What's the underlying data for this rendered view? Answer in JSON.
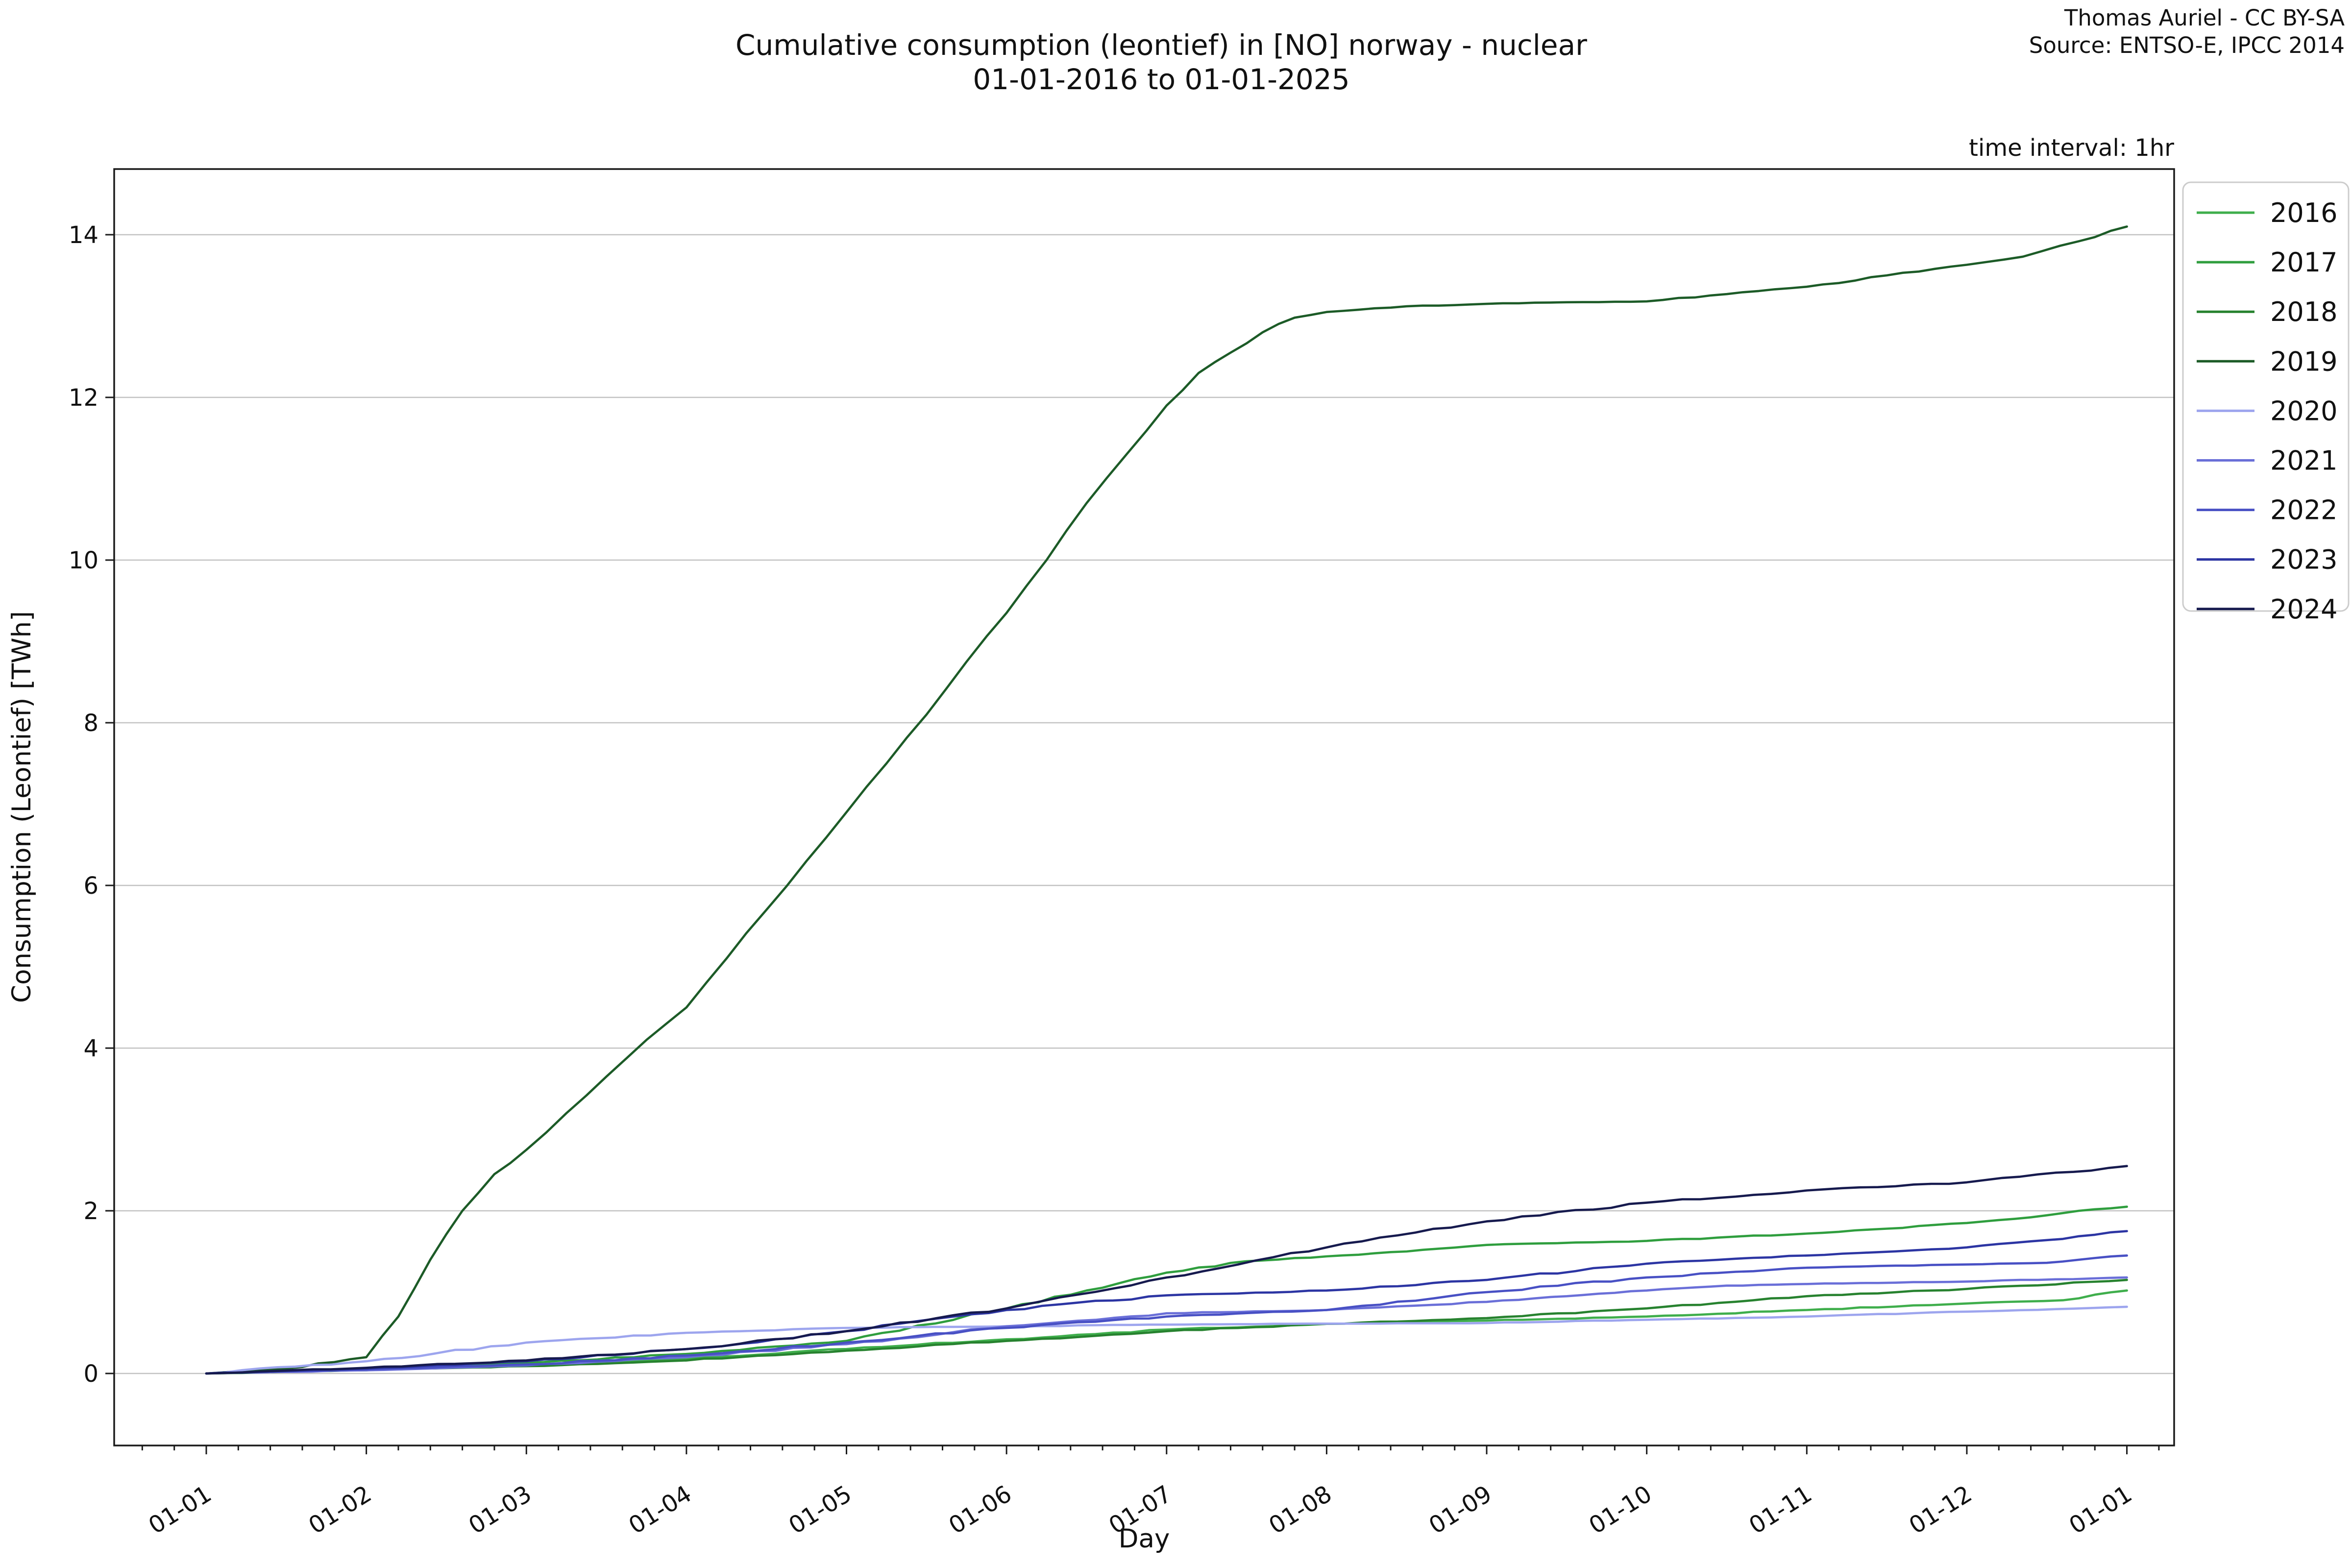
{
  "title": {
    "line1": "Cumulative consumption (leontief) in [NO] norway - nuclear",
    "line2": "01-01-2016 to 01-01-2025"
  },
  "attribution": {
    "line1": "Thomas Auriel - CC BY-SA",
    "line2": "Source: ENTSO-E, IPCC 2014"
  },
  "note": "time interval: 1hr",
  "chart_data": {
    "type": "line",
    "title": "Cumulative consumption (leontief) in [NO] norway - nuclear",
    "subtitle": "01-01-2016 to 01-01-2025",
    "xlabel": "Day",
    "ylabel": "Consumption (Leontief) [TWh]",
    "x_tick_labels": [
      "01-01",
      "01-02",
      "01-03",
      "01-04",
      "01-05",
      "01-06",
      "01-07",
      "01-08",
      "01-09",
      "01-10",
      "01-11",
      "01-12",
      "01-01"
    ],
    "y_ticks": [
      0,
      2,
      4,
      6,
      8,
      10,
      12,
      14
    ],
    "xlim_months": [
      -0.58,
      12.3
    ],
    "ylim": [
      -0.88,
      14.8
    ],
    "grid": "horizontal",
    "legend": {
      "position": "outside-right",
      "labels": [
        "2016",
        "2017",
        "2018",
        "2019",
        "2020",
        "2021",
        "2022",
        "2023",
        "2024"
      ]
    },
    "units": "TWh",
    "x_units": "months from 01-01",
    "series": [
      {
        "name": "2016",
        "color": "#3fae4c",
        "points": [
          [
            0,
            0
          ],
          [
            1,
            0.05
          ],
          [
            2,
            0.11
          ],
          [
            3,
            0.18
          ],
          [
            4,
            0.3
          ],
          [
            5,
            0.42
          ],
          [
            6,
            0.54
          ],
          [
            7,
            0.61
          ],
          [
            8,
            0.65
          ],
          [
            9,
            0.7
          ],
          [
            10,
            0.78
          ],
          [
            11,
            0.86
          ],
          [
            11.6,
            0.9
          ],
          [
            12,
            1.02
          ]
        ]
      },
      {
        "name": "2017",
        "color": "#2f9e3e",
        "points": [
          [
            0,
            0
          ],
          [
            1,
            0.06
          ],
          [
            2,
            0.13
          ],
          [
            3,
            0.24
          ],
          [
            4,
            0.4
          ],
          [
            5,
            0.8
          ],
          [
            5.5,
            1.02
          ],
          [
            6,
            1.24
          ],
          [
            6.5,
            1.38
          ],
          [
            7,
            1.44
          ],
          [
            7.5,
            1.5
          ],
          [
            8,
            1.58
          ],
          [
            9,
            1.63
          ],
          [
            10,
            1.72
          ],
          [
            10.5,
            1.78
          ],
          [
            11,
            1.85
          ],
          [
            11.4,
            1.92
          ],
          [
            11.7,
            2.0
          ],
          [
            12,
            2.05
          ]
        ]
      },
      {
        "name": "2018",
        "color": "#27822f",
        "points": [
          [
            0,
            0
          ],
          [
            1,
            0.04
          ],
          [
            2,
            0.09
          ],
          [
            3,
            0.16
          ],
          [
            4,
            0.28
          ],
          [
            5,
            0.4
          ],
          [
            6,
            0.52
          ],
          [
            7,
            0.61
          ],
          [
            8,
            0.68
          ],
          [
            9,
            0.8
          ],
          [
            10,
            0.95
          ],
          [
            11,
            1.04
          ],
          [
            12,
            1.15
          ]
        ]
      },
      {
        "name": "2019",
        "color": "#1c5b27",
        "points": [
          [
            0,
            0
          ],
          [
            0.5,
            0.06
          ],
          [
            1,
            0.2
          ],
          [
            1.2,
            0.7
          ],
          [
            1.4,
            1.4
          ],
          [
            1.6,
            2.0
          ],
          [
            1.8,
            2.45
          ],
          [
            2,
            2.75
          ],
          [
            2.25,
            3.2
          ],
          [
            2.5,
            3.65
          ],
          [
            2.75,
            4.1
          ],
          [
            3,
            4.5
          ],
          [
            3.25,
            5.1
          ],
          [
            3.5,
            5.7
          ],
          [
            3.75,
            6.3
          ],
          [
            4,
            6.9
          ],
          [
            4.25,
            7.5
          ],
          [
            4.5,
            8.1
          ],
          [
            4.75,
            8.75
          ],
          [
            5,
            9.35
          ],
          [
            5.25,
            10.0
          ],
          [
            5.5,
            10.7
          ],
          [
            5.75,
            11.3
          ],
          [
            6,
            11.9
          ],
          [
            6.2,
            12.3
          ],
          [
            6.4,
            12.55
          ],
          [
            6.6,
            12.8
          ],
          [
            6.8,
            12.98
          ],
          [
            7,
            13.05
          ],
          [
            7.5,
            13.12
          ],
          [
            8,
            13.15
          ],
          [
            8.5,
            13.17
          ],
          [
            9,
            13.18
          ],
          [
            9.5,
            13.27
          ],
          [
            10,
            13.36
          ],
          [
            10.5,
            13.5
          ],
          [
            11,
            13.63
          ],
          [
            11.35,
            13.73
          ],
          [
            11.7,
            13.92
          ],
          [
            12,
            14.1
          ]
        ]
      },
      {
        "name": "2020",
        "color": "#9da5ee",
        "points": [
          [
            0,
            0
          ],
          [
            1,
            0.15
          ],
          [
            2,
            0.38
          ],
          [
            3,
            0.5
          ],
          [
            4,
            0.56
          ],
          [
            5,
            0.58
          ],
          [
            6,
            0.6
          ],
          [
            7,
            0.61
          ],
          [
            8,
            0.62
          ],
          [
            9,
            0.66
          ],
          [
            10,
            0.7
          ],
          [
            11,
            0.76
          ],
          [
            12,
            0.82
          ]
        ]
      },
      {
        "name": "2021",
        "color": "#6a6fd8",
        "points": [
          [
            0,
            0
          ],
          [
            1,
            0.04
          ],
          [
            2,
            0.1
          ],
          [
            3,
            0.2
          ],
          [
            4,
            0.36
          ],
          [
            5,
            0.58
          ],
          [
            6,
            0.74
          ],
          [
            7,
            0.78
          ],
          [
            8,
            0.88
          ],
          [
            8.5,
            0.95
          ],
          [
            9,
            1.02
          ],
          [
            9.5,
            1.08
          ],
          [
            10,
            1.1
          ],
          [
            11,
            1.13
          ],
          [
            12,
            1.18
          ]
        ]
      },
      {
        "name": "2022",
        "color": "#4850c4",
        "points": [
          [
            0,
            0
          ],
          [
            1,
            0.05
          ],
          [
            2,
            0.11
          ],
          [
            3,
            0.22
          ],
          [
            4,
            0.38
          ],
          [
            5,
            0.56
          ],
          [
            6,
            0.7
          ],
          [
            7,
            0.78
          ],
          [
            8,
            1.0
          ],
          [
            9,
            1.18
          ],
          [
            10,
            1.3
          ],
          [
            11,
            1.34
          ],
          [
            11.5,
            1.36
          ],
          [
            12,
            1.45
          ]
        ]
      },
      {
        "name": "2023",
        "color": "#2c35a3",
        "points": [
          [
            0,
            0
          ],
          [
            1,
            0.06
          ],
          [
            2,
            0.15
          ],
          [
            3,
            0.3
          ],
          [
            4,
            0.52
          ],
          [
            5,
            0.78
          ],
          [
            6,
            0.96
          ],
          [
            7,
            1.02
          ],
          [
            8,
            1.15
          ],
          [
            9,
            1.35
          ],
          [
            10,
            1.45
          ],
          [
            11,
            1.55
          ],
          [
            11.5,
            1.64
          ],
          [
            12,
            1.75
          ]
        ]
      },
      {
        "name": "2024",
        "color": "#161a4e",
        "points": [
          [
            0,
            0
          ],
          [
            1,
            0.07
          ],
          [
            2,
            0.16
          ],
          [
            3,
            0.3
          ],
          [
            4,
            0.52
          ],
          [
            5,
            0.8
          ],
          [
            6,
            1.18
          ],
          [
            7,
            1.55
          ],
          [
            8,
            1.87
          ],
          [
            9,
            2.1
          ],
          [
            10,
            2.25
          ],
          [
            11,
            2.35
          ],
          [
            12,
            2.55
          ]
        ]
      }
    ]
  }
}
